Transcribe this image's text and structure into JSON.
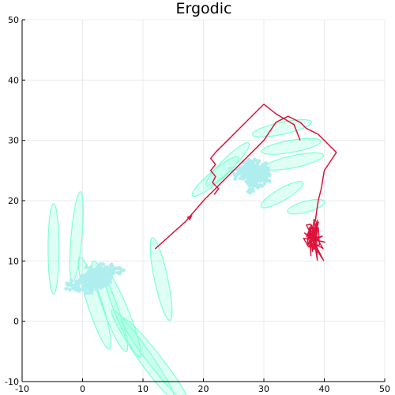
{
  "chart_data": {
    "type": "line",
    "title": "Ergodic",
    "xlabel": "",
    "ylabel": "",
    "xlim": [
      -10,
      50
    ],
    "ylim": [
      -10,
      50
    ],
    "xticks": [
      -10,
      0,
      10,
      20,
      30,
      40,
      50
    ],
    "yticks": [
      -10,
      0,
      10,
      20,
      30,
      40,
      50
    ],
    "xtick_labels": [
      "-10",
      "0",
      "10",
      "20",
      "30",
      "40",
      "50"
    ],
    "ytick_labels": [
      "-10",
      "0",
      "10",
      "20",
      "30",
      "40",
      "50"
    ],
    "grid": true,
    "legend": "none",
    "colors": {
      "trajectory": "#dc143c",
      "cluster": "#afeeee",
      "ellipse_stroke": "#7fffd4",
      "ellipse_fill": "#7fffd4",
      "grid": "#e6e6e6",
      "axis": "#000000"
    },
    "trajectory": {
      "x": [
        12,
        17,
        20,
        24,
        27,
        30,
        32,
        34,
        36,
        37,
        38,
        39,
        40,
        41,
        42,
        41,
        40,
        39.5,
        39,
        38.7,
        38.5
      ],
      "y": [
        12,
        16.5,
        20,
        24,
        27,
        30,
        33,
        34,
        33,
        32,
        31.5,
        31,
        30,
        29,
        28,
        26.5,
        25,
        22,
        20,
        18,
        16.5
      ]
    },
    "trajectory_west": {
      "x": [
        30,
        28,
        26,
        24,
        22,
        21.2,
        22,
        21.2,
        22,
        21.5,
        22.5,
        21.8
      ],
      "y": [
        36,
        34,
        32,
        30,
        28,
        27,
        26,
        25,
        24,
        23,
        22,
        21
      ]
    },
    "trajectory_north": {
      "x": [
        30,
        31,
        32,
        33,
        34,
        35,
        36
      ],
      "y": [
        36,
        35.2,
        34.4,
        33.8,
        33.2,
        32.6,
        30
      ]
    },
    "arrow": {
      "x": 17.5,
      "y": 17,
      "dx": 0.8,
      "dy": 0.7
    },
    "clusters": [
      {
        "cx": 3,
        "cy": 7,
        "sx": 4,
        "sy": 3,
        "n": 380,
        "seed": 7
      },
      {
        "cx": 29,
        "cy": 24,
        "sx": 6,
        "sy": 3.5,
        "n": 380,
        "seed": 13
      }
    ],
    "red_cluster": {
      "cx": 38,
      "cy": 14,
      "sx": 0.8,
      "sy": 1.5,
      "n": 60,
      "seed": 29
    },
    "ellipses": [
      {
        "cx": -4.8,
        "cy": 12,
        "rx": 0.9,
        "ry": 7.5,
        "rot": 0
      },
      {
        "cx": -1.0,
        "cy": 14,
        "rx": 0.9,
        "ry": 7.5,
        "rot": 5
      },
      {
        "cx": 2.0,
        "cy": 3.0,
        "rx": 1.2,
        "ry": 8,
        "rot": -18
      },
      {
        "cx": 4.5,
        "cy": 2.5,
        "rx": 1.2,
        "ry": 8,
        "rot": -20
      },
      {
        "cx": 6.5,
        "cy": 1.5,
        "rx": 1.1,
        "ry": 8,
        "rot": -22
      },
      {
        "cx": 10,
        "cy": -5.5,
        "rx": 1.1,
        "ry": 9,
        "rot": -35
      },
      {
        "cx": 12,
        "cy": -6.5,
        "rx": 1.1,
        "ry": 9,
        "rot": -38
      },
      {
        "cx": 13,
        "cy": 7,
        "rx": 1.1,
        "ry": 7,
        "rot": -12
      },
      {
        "cx": 24,
        "cy": 26,
        "rx": 1.0,
        "ry": 5,
        "rot": 45
      },
      {
        "cx": 22,
        "cy": 24,
        "rx": 1.0,
        "ry": 5,
        "rot": 50
      },
      {
        "cx": 33,
        "cy": 32,
        "rx": 1.0,
        "ry": 5,
        "rot": 78
      },
      {
        "cx": 34.5,
        "cy": 29,
        "rx": 1.0,
        "ry": 5,
        "rot": 80
      },
      {
        "cx": 35,
        "cy": 26.5,
        "rx": 1.0,
        "ry": 5,
        "rot": 78
      },
      {
        "cx": 33,
        "cy": 21,
        "rx": 1.0,
        "ry": 4,
        "rot": 60
      },
      {
        "cx": 37,
        "cy": 19,
        "rx": 0.9,
        "ry": 3.2,
        "rot": 75
      }
    ]
  }
}
